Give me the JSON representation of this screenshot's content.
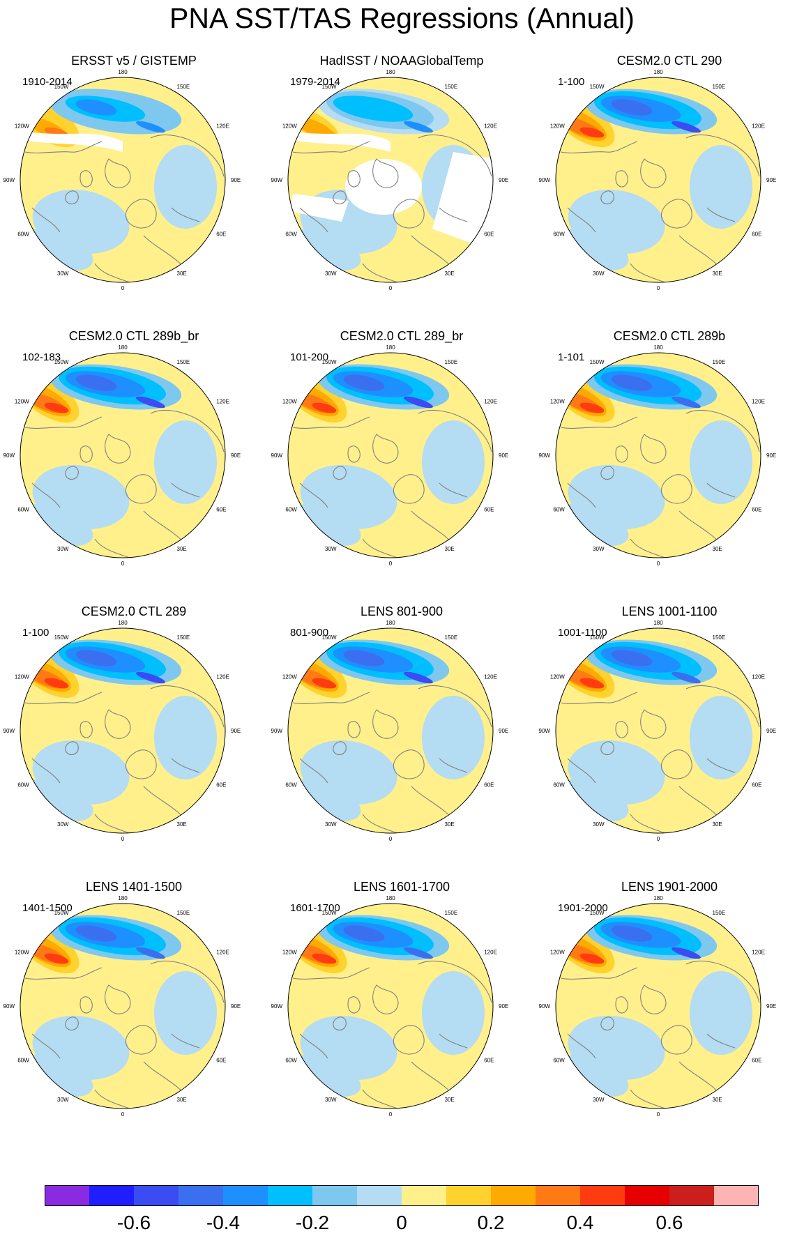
{
  "figure": {
    "title": "PNA SST/TAS Regressions (Annual)"
  },
  "longitude_labels": [
    "180",
    "150E",
    "120E",
    "90E",
    "60E",
    "30E",
    "0",
    "30W",
    "60W",
    "90W",
    "120W",
    "150W"
  ],
  "colors": {
    "coastline": "#808080",
    "map_border": "#000000",
    "missing_data": "#ffffff"
  },
  "panels": [
    {
      "title": "ERSST v5 / GISTEMP",
      "period": "1910-2014",
      "anomaly_scale": 0.7,
      "missing_data": true
    },
    {
      "title": "HadISST / NOAAGlobalTemp",
      "period": "1979-2014",
      "anomaly_scale": 0.65,
      "missing_data": true
    },
    {
      "title": "CESM2.0 CTL 290",
      "period": "1-100",
      "anomaly_scale": 0.95,
      "missing_data": false
    },
    {
      "title": "CESM2.0 CTL 289b_br",
      "period": "102-183",
      "anomaly_scale": 0.95,
      "missing_data": false
    },
    {
      "title": "CESM2.0 CTL 289_br",
      "period": "101-200",
      "anomaly_scale": 1.0,
      "missing_data": false
    },
    {
      "title": "CESM2.0 CTL 289b",
      "period": "1-101",
      "anomaly_scale": 0.9,
      "missing_data": false
    },
    {
      "title": "CESM2.0 CTL 289",
      "period": "1-100",
      "anomaly_scale": 0.95,
      "missing_data": false
    },
    {
      "title": "LENS 801-900",
      "period": "801-900",
      "anomaly_scale": 0.95,
      "missing_data": false
    },
    {
      "title": "LENS 1001-1100",
      "period": "1001-1100",
      "anomaly_scale": 0.9,
      "missing_data": false
    },
    {
      "title": "LENS 1401-1500",
      "period": "1401-1500",
      "anomaly_scale": 0.9,
      "missing_data": false
    },
    {
      "title": "LENS 1601-1700",
      "period": "1601-1700",
      "anomaly_scale": 0.9,
      "missing_data": false
    },
    {
      "title": "LENS 1901-2000",
      "period": "1901-2000",
      "anomaly_scale": 0.95,
      "missing_data": false
    }
  ],
  "colorbar": {
    "levels": [
      -0.7,
      -0.6,
      -0.5,
      -0.4,
      -0.3,
      -0.2,
      -0.1,
      0,
      0.1,
      0.2,
      0.3,
      0.4,
      0.5,
      0.6,
      0.7
    ],
    "colors": [
      "#8a2be2",
      "#1e1eff",
      "#3b4cf2",
      "#3a6ff0",
      "#1e8fff",
      "#00bfff",
      "#7ec8f0",
      "#b4dcf2",
      "#fff08c",
      "#ffd22e",
      "#ffaa00",
      "#ff7a14",
      "#ff3c0f",
      "#e60000",
      "#cd1e1e",
      "#ffb4b4"
    ],
    "tick_labels": [
      "-0.6",
      "-0.4",
      "-0.2",
      "0",
      "0.2",
      "0.4",
      "0.6"
    ],
    "tick_values": [
      -0.6,
      -0.4,
      -0.2,
      0,
      0.2,
      0.4,
      0.6
    ]
  }
}
